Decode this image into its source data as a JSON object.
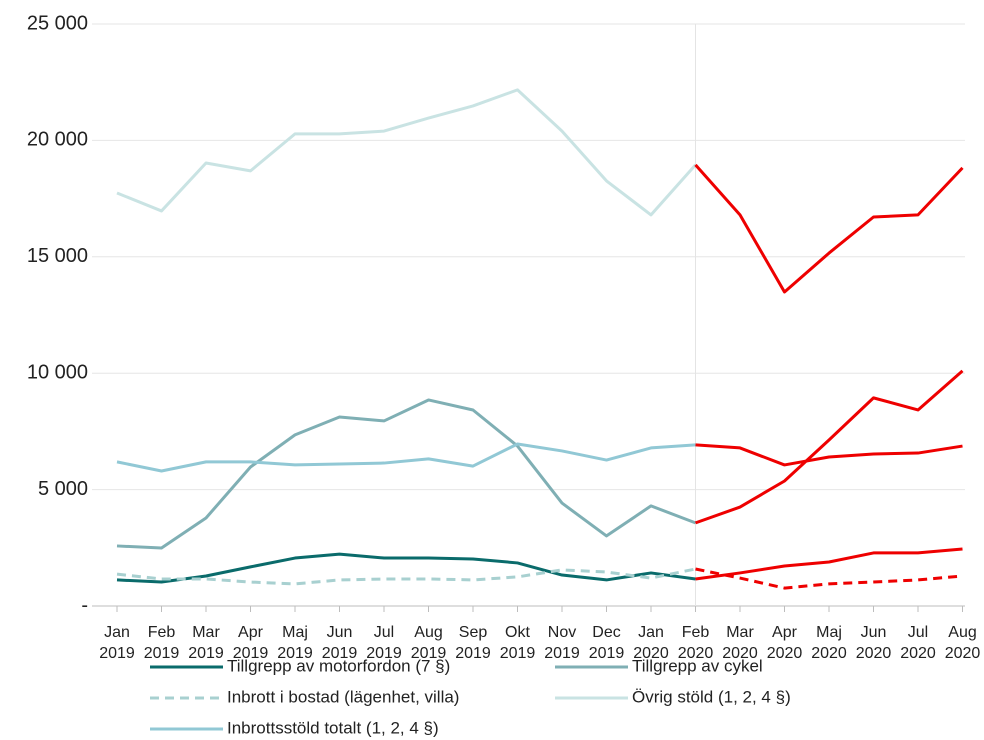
{
  "chart_data": {
    "type": "line",
    "categories": [
      [
        "Jan",
        "2019"
      ],
      [
        "Feb",
        "2019"
      ],
      [
        "Mar",
        "2019"
      ],
      [
        "Apr",
        "2019"
      ],
      [
        "Maj",
        "2019"
      ],
      [
        "Jun",
        "2019"
      ],
      [
        "Jul",
        "2019"
      ],
      [
        "Aug",
        "2019"
      ],
      [
        "Sep",
        "2019"
      ],
      [
        "Okt",
        "2019"
      ],
      [
        "Nov",
        "2019"
      ],
      [
        "Dec",
        "2019"
      ],
      [
        "Jan",
        "2020"
      ],
      [
        "Feb",
        "2020"
      ],
      [
        "Mar",
        "2020"
      ],
      [
        "Apr",
        "2020"
      ],
      [
        "Maj",
        "2020"
      ],
      [
        "Jun",
        "2020"
      ],
      [
        "Jul",
        "2020"
      ],
      [
        "Aug",
        "2020"
      ]
    ],
    "ylim": [
      0,
      25000
    ],
    "yticks": [
      {
        "value": 0,
        "label": "-"
      },
      {
        "value": 5000,
        "label": "5 000"
      },
      {
        "value": 10000,
        "label": "10 000"
      },
      {
        "value": 15000,
        "label": "15 000"
      },
      {
        "value": 20000,
        "label": "20 000"
      },
      {
        "value": 25000,
        "label": "25 000"
      }
    ],
    "grid": true,
    "series": [
      {
        "name": "Tillgrepp av motorfordon (7 §)",
        "color": "#0a6b6b",
        "dash": false,
        "values": [
          1120,
          1030,
          1290,
          1680,
          2060,
          2230,
          2060,
          2060,
          2020,
          1850,
          1330,
          1120,
          1420,
          1160,
          null,
          null,
          null,
          null,
          null,
          null
        ]
      },
      {
        "name": "Tillgrepp av cykel",
        "color": "#7fafb4",
        "dash": false,
        "values": [
          2580,
          2490,
          3780,
          5970,
          7350,
          8120,
          7950,
          8850,
          8420,
          6870,
          4420,
          3010,
          4300,
          3570,
          null,
          null,
          null,
          null,
          null,
          null
        ]
      },
      {
        "name": "Inbrott i bostad (lägenhet, villa)",
        "color": "#a8d0d0",
        "dash": true,
        "values": [
          1370,
          1160,
          1160,
          1030,
          950,
          1120,
          1160,
          1160,
          1120,
          1250,
          1550,
          1460,
          1200,
          1590,
          null,
          null,
          null,
          null,
          null,
          null
        ]
      },
      {
        "name": "Övrig stöld  (1, 2, 4 §)",
        "color": "#c9e3e3",
        "dash": false,
        "values": [
          17740,
          16970,
          19030,
          18690,
          20280,
          20280,
          20400,
          20960,
          21480,
          22170,
          20400,
          18260,
          16800,
          18950,
          null,
          null,
          null,
          null,
          null,
          null
        ]
      },
      {
        "name": "Inbrottsstöld totalt (1, 2, 4 §)",
        "color": "#91c8d5",
        "dash": false,
        "values": [
          6190,
          5800,
          6190,
          6190,
          6060,
          6100,
          6140,
          6320,
          6010,
          6960,
          6660,
          6270,
          6790,
          6920,
          null,
          null,
          null,
          null,
          null,
          null
        ]
      },
      {
        "color": "#ee0000",
        "dash": false,
        "values": [
          null,
          null,
          null,
          null,
          null,
          null,
          null,
          null,
          null,
          null,
          null,
          null,
          null,
          1160,
          1420,
          1720,
          1890,
          2280,
          2280,
          2450
        ]
      },
      {
        "color": "#ee0000",
        "dash": false,
        "values": [
          null,
          null,
          null,
          null,
          null,
          null,
          null,
          null,
          null,
          null,
          null,
          null,
          null,
          3570,
          4250,
          5370,
          7130,
          8940,
          8420,
          10100
        ]
      },
      {
        "color": "#ee0000",
        "dash": true,
        "values": [
          null,
          null,
          null,
          null,
          null,
          null,
          null,
          null,
          null,
          null,
          null,
          null,
          null,
          1590,
          1200,
          770,
          950,
          1030,
          1120,
          1290
        ]
      },
      {
        "color": "#ee0000",
        "dash": false,
        "values": [
          null,
          null,
          null,
          null,
          null,
          null,
          null,
          null,
          null,
          null,
          null,
          null,
          null,
          18950,
          16800,
          13490,
          15160,
          16710,
          16800,
          18820
        ]
      },
      {
        "color": "#ee0000",
        "dash": false,
        "values": [
          null,
          null,
          null,
          null,
          null,
          null,
          null,
          null,
          null,
          null,
          null,
          null,
          null,
          6920,
          6790,
          6060,
          6400,
          6530,
          6570,
          6870
        ]
      }
    ]
  }
}
